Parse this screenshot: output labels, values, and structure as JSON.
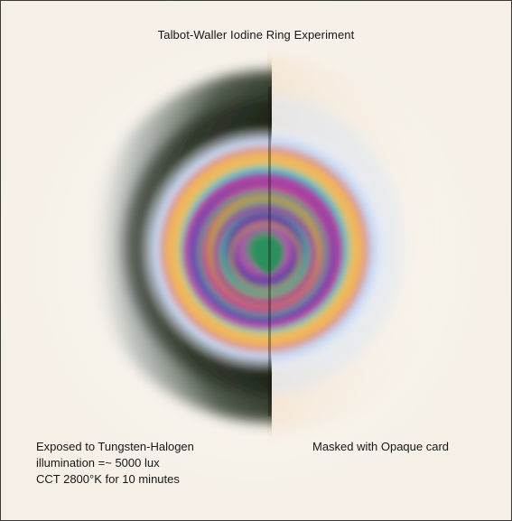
{
  "image": {
    "title": "Talbot-Waller Iodine Ring Experiment",
    "left_caption": [
      "Exposed to Tungsten-Halogen",
      "illumination =~ 5000 lux",
      "CCT 2800°K for 10 minutes"
    ],
    "right_caption": "Masked with Opaque card",
    "colors": {
      "background": "#f7f4ef",
      "left_shadow": "#161b10",
      "ring_magenta": "#b0419d",
      "ring_green": "#2f8f63",
      "ring_gold": "#e6a64c"
    }
  }
}
